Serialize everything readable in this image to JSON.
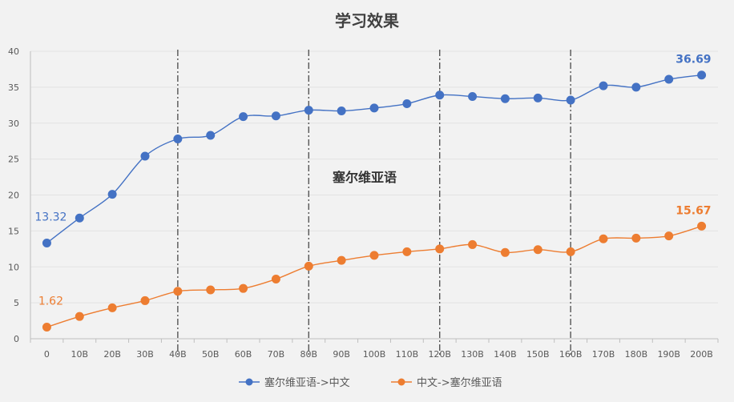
{
  "chart_data": {
    "type": "line",
    "title": "学习效果",
    "annotation": "塞尔维亚语",
    "xlabel": "",
    "ylabel": "",
    "categories": [
      "0",
      "10B",
      "20B",
      "30B",
      "40B",
      "50B",
      "60B",
      "70B",
      "80B",
      "90B",
      "100B",
      "110B",
      "120B",
      "130B",
      "140B",
      "150B",
      "160B",
      "170B",
      "180B",
      "190B",
      "200B"
    ],
    "ylim": [
      0,
      40
    ],
    "yticks": [
      0,
      5,
      10,
      15,
      20,
      25,
      30,
      35,
      40
    ],
    "grid": true,
    "legend_position": "bottom",
    "vertical_markers": [
      "40B",
      "80B",
      "120B",
      "160B"
    ],
    "series": [
      {
        "name": "塞尔维亚语->中文",
        "color": "#4472c4",
        "values": [
          13.32,
          16.8,
          20.1,
          25.4,
          27.8,
          28.3,
          30.9,
          31.0,
          31.8,
          31.7,
          32.1,
          32.7,
          33.9,
          33.7,
          33.4,
          33.5,
          33.2,
          35.2,
          35.0,
          36.1,
          36.69
        ],
        "labels": [
          {
            "index": 0,
            "text": "13.32",
            "bold": false
          },
          {
            "index": 20,
            "text": "36.69",
            "bold": true
          }
        ]
      },
      {
        "name": "中文->塞尔维亚语",
        "color": "#ed7d31",
        "values": [
          1.62,
          3.1,
          4.3,
          5.3,
          6.6,
          6.8,
          7.0,
          8.3,
          10.1,
          10.9,
          11.6,
          12.1,
          12.5,
          13.1,
          12.0,
          12.4,
          12.1,
          13.9,
          14.0,
          14.3,
          15.67
        ],
        "labels": [
          {
            "index": 0,
            "text": "1.62",
            "bold": false
          },
          {
            "index": 20,
            "text": "15.67",
            "bold": true
          }
        ]
      }
    ]
  }
}
